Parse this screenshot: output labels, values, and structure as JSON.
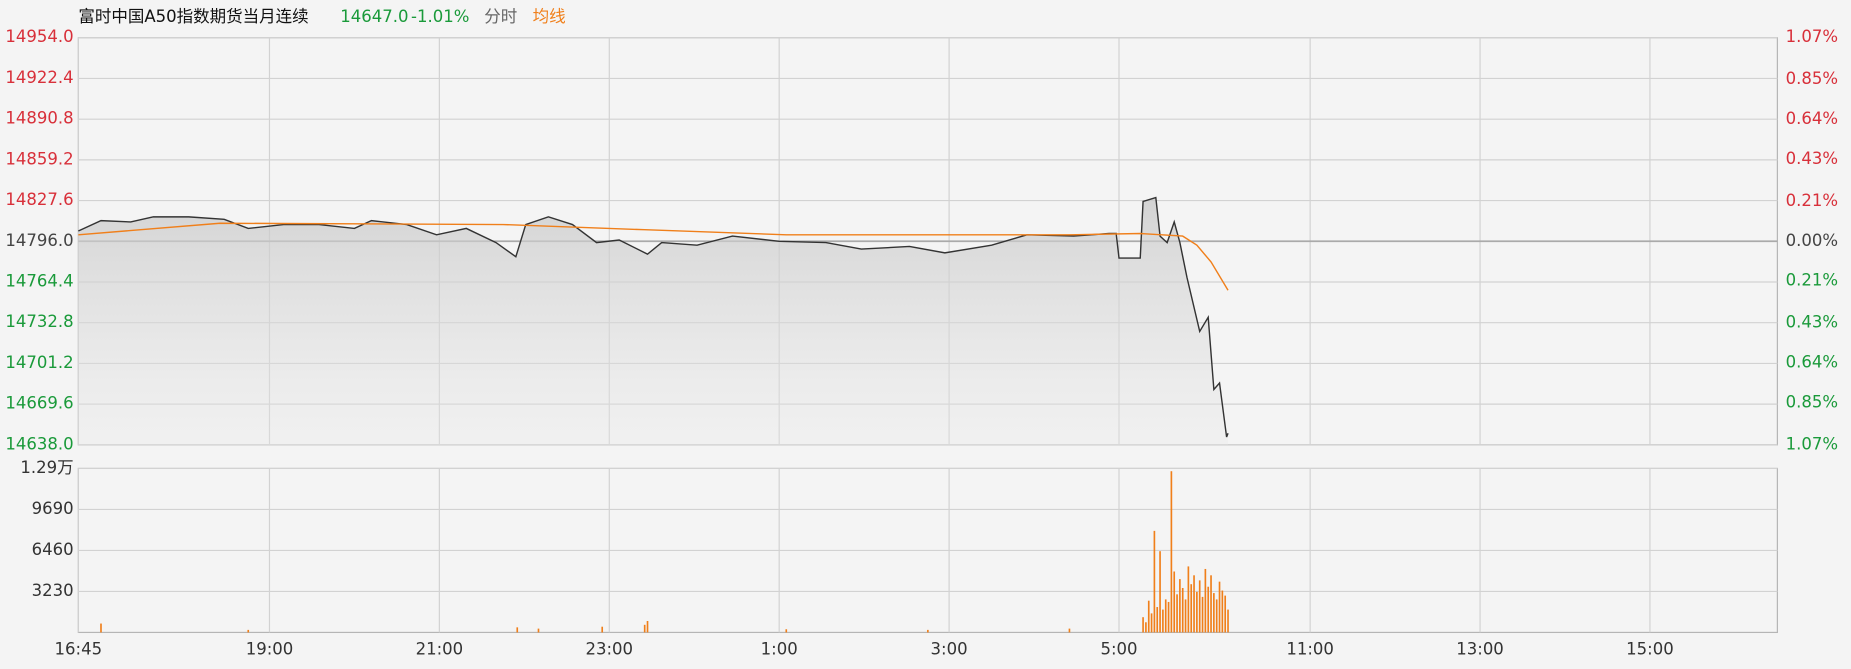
{
  "chart_data": [
    {
      "type": "line",
      "title": "富时中国A50指数期货当月连续",
      "quote": "14647.0",
      "change": "-1.01%",
      "up_color": "#d8303a",
      "down_color": "#1a9a3a",
      "flat_color": "#444444",
      "xlim": [
        0,
        1200
      ],
      "ylim": [
        14638.0,
        14954.0
      ],
      "yticks": [
        {
          "value": 14638.0,
          "label": "14638.0"
        },
        {
          "value": 14669.6,
          "label": "14669.6"
        },
        {
          "value": 14701.2,
          "label": "14701.2"
        },
        {
          "value": 14732.8,
          "label": "14732.8"
        },
        {
          "value": 14764.4,
          "label": "14764.4"
        },
        {
          "value": 14796.0,
          "label": "14796.0"
        },
        {
          "value": 14827.6,
          "label": "14827.6"
        },
        {
          "value": 14859.2,
          "label": "14859.2"
        },
        {
          "value": 14890.8,
          "label": "14890.8"
        },
        {
          "value": 14922.4,
          "label": "14922.4"
        },
        {
          "value": 14954.0,
          "label": "14954.0"
        }
      ],
      "y2lim": [
        -1.07,
        1.07
      ],
      "y2ticks": [
        {
          "value": -1.07,
          "label": "1.07%"
        },
        {
          "value": -0.85,
          "label": "0.85%"
        },
        {
          "value": -0.64,
          "label": "0.64%"
        },
        {
          "value": -0.43,
          "label": "0.43%"
        },
        {
          "value": -0.21,
          "label": "0.21%"
        },
        {
          "value": 0,
          "label": "0.00%"
        },
        {
          "value": 0.21,
          "label": "0.21%"
        },
        {
          "value": 0.43,
          "label": "0.43%"
        },
        {
          "value": 0.64,
          "label": "0.64%"
        },
        {
          "value": 0.85,
          "label": "0.85%"
        },
        {
          "value": 1.07,
          "label": "1.07%"
        }
      ],
      "grid": true,
      "series": [
        {
          "name": "分时",
          "color": "#333333",
          "x": [
            0,
            16,
            37,
            53,
            78,
            103,
            120,
            145,
            170,
            195,
            207,
            232,
            253,
            274,
            295,
            309,
            316,
            332,
            349,
            366,
            382,
            402,
            412,
            437,
            462,
            495,
            528,
            553,
            587,
            612,
            645,
            670,
            703,
            728,
            733,
            735,
            750,
            752,
            761,
            764,
            769,
            774,
            778,
            783,
            792,
            798,
            802,
            806,
            811,
            812
          ],
          "values": [
            14804,
            14812,
            14811,
            14815,
            14815,
            14813,
            14806,
            14809,
            14809,
            14806,
            14812,
            14809,
            14801,
            14806,
            14795,
            14784,
            14809,
            14815,
            14809,
            14795,
            14797,
            14786,
            14795,
            14793,
            14800,
            14796,
            14795,
            14790,
            14792,
            14787,
            14793,
            14801,
            14800,
            14802,
            14802,
            14783,
            14783,
            14827,
            14830,
            14800,
            14795,
            14811,
            14795,
            14768,
            14726,
            14737,
            14681,
            14686,
            14644,
            14647
          ]
        },
        {
          "name": "均线",
          "color": "#f07f1a",
          "x": [
            0,
            100,
            300,
            400,
            500,
            700,
            750,
            780,
            790,
            800,
            812
          ],
          "values": [
            14801,
            14810,
            14809,
            14805,
            14801,
            14801,
            14802,
            14800,
            14793,
            14780,
            14758
          ]
        }
      ]
    },
    {
      "type": "bar",
      "color": "#f07f1a",
      "xlim": [
        0,
        1200
      ],
      "xticks": [
        {
          "value": 0,
          "label": "16:45"
        },
        {
          "value": 135,
          "label": "19:00"
        },
        {
          "value": 255,
          "label": "21:00"
        },
        {
          "value": 375,
          "label": "23:00"
        },
        {
          "value": 495,
          "label": "1:00"
        },
        {
          "value": 615,
          "label": "3:00"
        },
        {
          "value": 735,
          "label": "5:00"
        },
        {
          "value": 870,
          "label": "11:00"
        },
        {
          "value": 990,
          "label": "13:00"
        },
        {
          "value": 1110,
          "label": "15:00"
        }
      ],
      "ylim": [
        0,
        12920
      ],
      "yticks": [
        3230,
        6460,
        9690,
        {
          "value": 12920,
          "label": "1.29万"
        }
      ],
      "grid": true,
      "x": [
        16,
        120,
        310,
        325,
        370,
        400,
        402,
        500,
        600,
        700,
        752,
        754,
        756,
        758,
        760,
        762,
        764,
        766,
        768,
        770,
        772,
        774,
        776,
        778,
        780,
        782,
        784,
        786,
        788,
        790,
        792,
        794,
        796,
        798,
        800,
        802,
        804,
        806,
        808,
        810,
        812
      ],
      "values": [
        700,
        200,
        400,
        300,
        450,
        600,
        900,
        250,
        200,
        300,
        1200,
        800,
        2500,
        1500,
        8000,
        2000,
        6400,
        1800,
        2600,
        2400,
        12700,
        4800,
        3000,
        4200,
        3500,
        2600,
        5200,
        3800,
        4500,
        3200,
        4100,
        2800,
        5000,
        3600,
        4500,
        3100,
        2600,
        4000,
        3300,
        2900,
        1800
      ]
    }
  ]
}
